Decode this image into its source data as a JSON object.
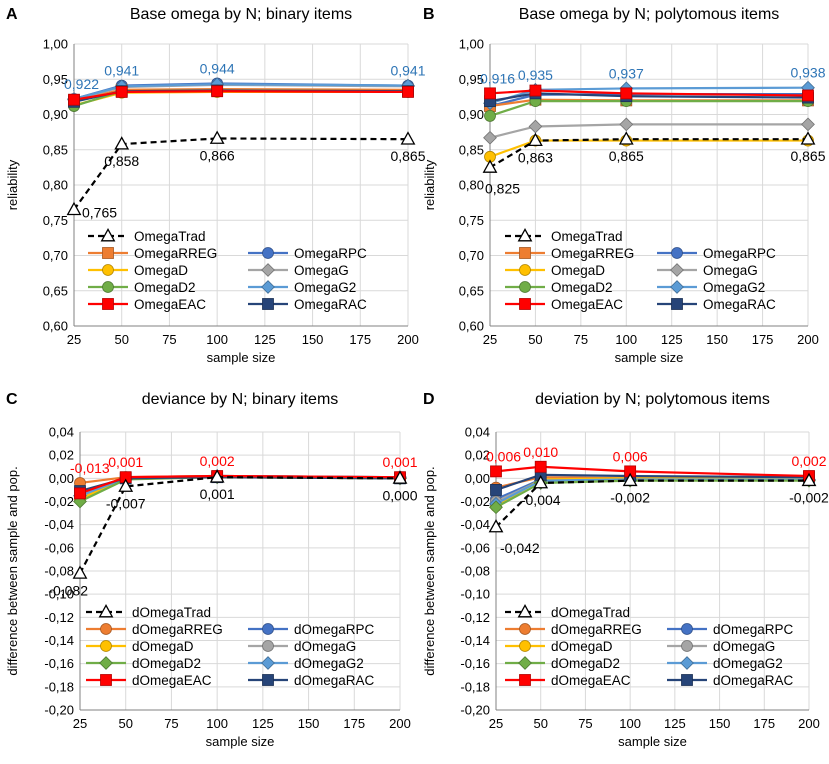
{
  "chart_data": [
    {
      "panel_letter": "A",
      "type": "line",
      "title": "Base omega by N; binary items",
      "xlabel": "sample size",
      "ylabel": "reliability",
      "x": [
        25,
        50,
        100,
        200
      ],
      "xlim": [
        25,
        200
      ],
      "xticks": [
        "25",
        "50",
        "75",
        "100",
        "125",
        "150",
        "175",
        "200"
      ],
      "ylim": [
        0.6,
        1.0
      ],
      "yticks": [
        "0,60",
        "0,65",
        "0,70",
        "0,75",
        "0,80",
        "0,85",
        "0,90",
        "0,95",
        "1,00"
      ],
      "series": [
        {
          "name": "OmegaTrad",
          "color": "#000000",
          "marker": "triangle",
          "dash": true,
          "values": [
            0.765,
            0.858,
            0.866,
            0.865
          ]
        },
        {
          "name": "OmegaRPC",
          "color": "#4472C4",
          "marker": "circle",
          "values": [
            0.922,
            0.941,
            0.944,
            0.941
          ]
        },
        {
          "name": "OmegaRREG",
          "color": "#ED7D31",
          "marker": "square",
          "values": [
            0.92,
            0.935,
            0.936,
            0.935
          ]
        },
        {
          "name": "OmegaG",
          "color": "#A5A5A5",
          "marker": "diamond",
          "values": [
            0.921,
            0.939,
            0.942,
            0.94
          ]
        },
        {
          "name": "OmegaD",
          "color": "#FFC000",
          "marker": "circle",
          "values": [
            0.913,
            0.931,
            0.932,
            0.932
          ]
        },
        {
          "name": "OmegaG2",
          "color": "#5B9BD5",
          "marker": "diamond",
          "values": [
            0.922,
            0.94,
            0.943,
            0.941
          ]
        },
        {
          "name": "OmegaD2",
          "color": "#70AD47",
          "marker": "circle",
          "values": [
            0.912,
            0.933,
            0.934,
            0.933
          ]
        },
        {
          "name": "OmegaRAC",
          "color": "#264478",
          "marker": "square",
          "values": [
            0.918,
            0.933,
            0.934,
            0.933
          ]
        },
        {
          "name": "OmegaEAC",
          "color": "#FF0000",
          "marker": "square",
          "values": [
            0.921,
            0.932,
            0.933,
            0.932
          ]
        }
      ],
      "annotations_top": [
        "0,922",
        "0,941",
        "0,944",
        "0,941"
      ],
      "annotations_bottom": [
        "0,765",
        "0,858",
        "0,866",
        "0,865"
      ]
    },
    {
      "panel_letter": "B",
      "type": "line",
      "title": "Base omega by N; polytomous items",
      "xlabel": "sample size",
      "ylabel": "reliability",
      "x": [
        25,
        50,
        100,
        200
      ],
      "xlim": [
        25,
        200
      ],
      "xticks": [
        "25",
        "50",
        "75",
        "100",
        "125",
        "150",
        "175",
        "200"
      ],
      "ylim": [
        0.6,
        1.0
      ],
      "yticks": [
        "0,60",
        "0,65",
        "0,70",
        "0,75",
        "0,80",
        "0,85",
        "0,90",
        "0,95",
        "1,00"
      ],
      "series": [
        {
          "name": "OmegaTrad",
          "color": "#000000",
          "marker": "triangle",
          "dash": true,
          "values": [
            0.825,
            0.863,
            0.865,
            0.865
          ]
        },
        {
          "name": "OmegaRPC",
          "color": "#4472C4",
          "marker": "circle",
          "values": [
            0.912,
            0.928,
            0.929,
            0.929
          ]
        },
        {
          "name": "OmegaRREG",
          "color": "#ED7D31",
          "marker": "square",
          "values": [
            0.912,
            0.921,
            0.92,
            0.92
          ]
        },
        {
          "name": "OmegaG",
          "color": "#A5A5A5",
          "marker": "diamond",
          "values": [
            0.867,
            0.883,
            0.886,
            0.886
          ]
        },
        {
          "name": "OmegaD",
          "color": "#FFC000",
          "marker": "circle",
          "values": [
            0.84,
            0.863,
            0.863,
            0.863
          ]
        },
        {
          "name": "OmegaG2",
          "color": "#5B9BD5",
          "marker": "diamond",
          "values": [
            0.916,
            0.935,
            0.937,
            0.938
          ]
        },
        {
          "name": "OmegaD2",
          "color": "#70AD47",
          "marker": "circle",
          "values": [
            0.898,
            0.919,
            0.919,
            0.919
          ]
        },
        {
          "name": "OmegaRAC",
          "color": "#264478",
          "marker": "square",
          "values": [
            0.919,
            0.93,
            0.926,
            0.924
          ]
        },
        {
          "name": "OmegaEAC",
          "color": "#FF0000",
          "marker": "square",
          "values": [
            0.93,
            0.934,
            0.93,
            0.927
          ]
        }
      ],
      "annotations_top": [
        "0,916",
        "0,935",
        "0,937",
        "0,938"
      ],
      "annotations_bottom": [
        "0,825",
        "0,863",
        "0,865",
        "0,865"
      ]
    },
    {
      "panel_letter": "C",
      "type": "line",
      "title": "deviance by N; binary items",
      "xlabel": "sample size",
      "ylabel": "difference between sample and pop.",
      "x": [
        25,
        50,
        100,
        200
      ],
      "xlim": [
        25,
        200
      ],
      "xticks": [
        "25",
        "50",
        "75",
        "100",
        "125",
        "150",
        "175",
        "200"
      ],
      "ylim": [
        -0.2,
        0.04
      ],
      "yticks": [
        "-0,20",
        "-0,18",
        "-0,16",
        "-0,14",
        "-0,12",
        "-0,10",
        "-0,08",
        "-0,06",
        "-0,04",
        "-0,02",
        "0,00",
        "0,02",
        "0,04"
      ],
      "series": [
        {
          "name": "dOmegaTrad",
          "color": "#000000",
          "marker": "triangle",
          "dash": true,
          "values": [
            -0.082,
            -0.007,
            0.001,
            0.0
          ]
        },
        {
          "name": "dOmegaRPC",
          "color": "#4472C4",
          "marker": "circle",
          "values": [
            -0.016,
            0.0,
            0.002,
            0.001
          ]
        },
        {
          "name": "dOmegaRREG",
          "color": "#ED7D31",
          "marker": "circle",
          "values": [
            -0.004,
            0.001,
            0.002,
            0.001
          ]
        },
        {
          "name": "dOmegaG",
          "color": "#A5A5A5",
          "marker": "circle",
          "values": [
            -0.017,
            0.0,
            0.002,
            0.0
          ]
        },
        {
          "name": "dOmegaD",
          "color": "#FFC000",
          "marker": "circle",
          "values": [
            -0.018,
            0.0,
            0.001,
            0.0
          ]
        },
        {
          "name": "dOmegaG2",
          "color": "#5B9BD5",
          "marker": "diamond",
          "values": [
            -0.015,
            0.0,
            0.002,
            0.001
          ]
        },
        {
          "name": "dOmegaD2",
          "color": "#70AD47",
          "marker": "diamond",
          "values": [
            -0.02,
            -0.001,
            0.001,
            0.0
          ]
        },
        {
          "name": "dOmegaRAC",
          "color": "#264478",
          "marker": "square",
          "values": [
            -0.011,
            0.0,
            0.001,
            0.0
          ]
        },
        {
          "name": "dOmegaEAC",
          "color": "#FF0000",
          "marker": "square",
          "values": [
            -0.013,
            0.001,
            0.002,
            0.001
          ]
        }
      ],
      "annotations_top": [
        "-0,013",
        "0,001",
        "0,002",
        "0,001"
      ],
      "annotations_bottom": [
        "-0,082",
        "-0,007",
        "0,001",
        "0,000"
      ]
    },
    {
      "panel_letter": "D",
      "type": "line",
      "title": "deviation by N; polytomous items",
      "xlabel": "sample size",
      "ylabel": "difference between sample and pop.",
      "x": [
        25,
        50,
        100,
        200
      ],
      "xlim": [
        25,
        200
      ],
      "xticks": [
        "25",
        "50",
        "75",
        "100",
        "125",
        "150",
        "175",
        "200"
      ],
      "ylim": [
        -0.2,
        0.04
      ],
      "yticks": [
        "-0,20",
        "-0,18",
        "-0,16",
        "-0,14",
        "-0,12",
        "-0,10",
        "-0,08",
        "-0,06",
        "-0,04",
        "-0,02",
        "0,00",
        "0,02",
        "0,04"
      ],
      "series": [
        {
          "name": "dOmegaTrad",
          "color": "#000000",
          "marker": "triangle",
          "dash": true,
          "values": [
            -0.042,
            -0.004,
            -0.002,
            -0.002
          ]
        },
        {
          "name": "dOmegaRPC",
          "color": "#4472C4",
          "marker": "circle",
          "values": [
            -0.018,
            -0.001,
            0.0,
            0.0
          ]
        },
        {
          "name": "dOmegaRREG",
          "color": "#ED7D31",
          "marker": "circle",
          "values": [
            -0.008,
            0.001,
            0.0,
            0.0
          ]
        },
        {
          "name": "dOmegaG",
          "color": "#A5A5A5",
          "marker": "circle",
          "values": [
            -0.02,
            -0.002,
            0.0,
            0.0
          ]
        },
        {
          "name": "dOmegaD",
          "color": "#FFC000",
          "marker": "circle",
          "values": [
            -0.024,
            -0.001,
            0.0,
            0.0
          ]
        },
        {
          "name": "dOmegaG2",
          "color": "#5B9BD5",
          "marker": "diamond",
          "values": [
            -0.022,
            -0.002,
            -0.001,
            -0.001
          ]
        },
        {
          "name": "dOmegaD2",
          "color": "#70AD47",
          "marker": "diamond",
          "values": [
            -0.025,
            -0.004,
            -0.002,
            -0.002
          ]
        },
        {
          "name": "dOmegaRAC",
          "color": "#264478",
          "marker": "square",
          "values": [
            -0.01,
            0.003,
            0.002,
            0.001
          ]
        },
        {
          "name": "dOmegaEAC",
          "color": "#FF0000",
          "marker": "square",
          "values": [
            0.006,
            0.01,
            0.006,
            0.002
          ]
        }
      ],
      "annotations_top": [
        "0,006",
        "0,010",
        "0,006",
        "0,002"
      ],
      "annotations_bottom": [
        "-0,042",
        "-0,004",
        "-0,002",
        "-0,002"
      ]
    }
  ]
}
